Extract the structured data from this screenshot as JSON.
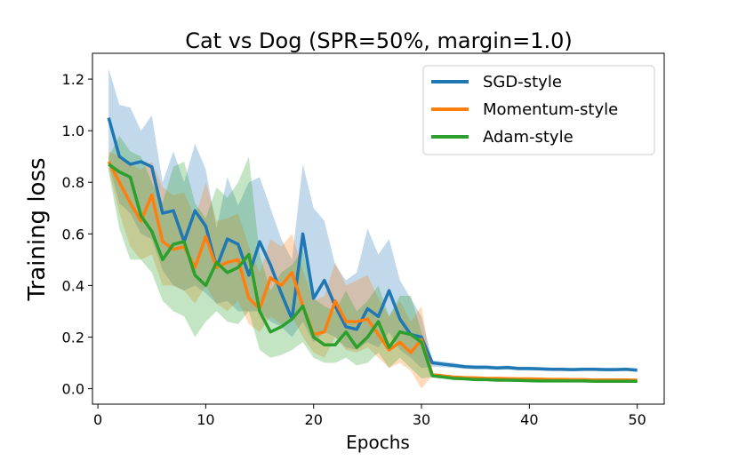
{
  "chart_data": {
    "type": "line",
    "title": "Cat vs Dog (SPR=50%, margin=1.0)",
    "xlabel": "Epochs",
    "ylabel": "Training loss",
    "xlim": [
      -0.5,
      52.5
    ],
    "ylim": [
      -0.06,
      1.3
    ],
    "xticks": [
      0,
      10,
      20,
      30,
      40,
      50
    ],
    "yticks": [
      0.0,
      0.2,
      0.4,
      0.6,
      0.8,
      1.0,
      1.2
    ],
    "xtick_labels": [
      "0",
      "10",
      "20",
      "30",
      "40",
      "50"
    ],
    "ytick_labels": [
      "0.0",
      "0.2",
      "0.4",
      "0.6",
      "0.8",
      "1.0",
      "1.2"
    ],
    "grid": false,
    "legend_position": "top-right",
    "x": [
      1,
      2,
      3,
      4,
      5,
      6,
      7,
      8,
      9,
      10,
      11,
      12,
      13,
      14,
      15,
      16,
      17,
      18,
      19,
      20,
      21,
      22,
      23,
      24,
      25,
      26,
      27,
      28,
      29,
      30,
      31,
      32,
      33,
      34,
      35,
      36,
      37,
      38,
      39,
      40,
      41,
      42,
      43,
      44,
      45,
      46,
      47,
      48,
      49,
      50
    ],
    "series": [
      {
        "name": "SGD-style",
        "color": "#1f77b4",
        "values": [
          1.05,
          0.9,
          0.87,
          0.88,
          0.86,
          0.68,
          0.69,
          0.57,
          0.69,
          0.63,
          0.47,
          0.58,
          0.56,
          0.44,
          0.57,
          0.48,
          0.37,
          0.27,
          0.6,
          0.35,
          0.42,
          0.32,
          0.24,
          0.23,
          0.31,
          0.28,
          0.38,
          0.27,
          0.21,
          0.2,
          0.1,
          0.095,
          0.09,
          0.085,
          0.083,
          0.083,
          0.08,
          0.082,
          0.078,
          0.078,
          0.077,
          0.075,
          0.075,
          0.074,
          0.075,
          0.075,
          0.074,
          0.074,
          0.075,
          0.072
        ],
        "lower": [
          0.87,
          0.72,
          0.68,
          0.6,
          0.58,
          0.46,
          0.4,
          0.38,
          0.4,
          0.37,
          0.33,
          0.34,
          0.3,
          0.3,
          0.3,
          0.26,
          0.24,
          0.2,
          0.26,
          0.18,
          0.22,
          0.2,
          0.16,
          0.15,
          0.18,
          0.16,
          0.22,
          0.15,
          0.12,
          0.08,
          0.085,
          0.083,
          0.08,
          0.077,
          0.075,
          0.075,
          0.073,
          0.074,
          0.071,
          0.071,
          0.07,
          0.068,
          0.068,
          0.067,
          0.068,
          0.068,
          0.067,
          0.067,
          0.068,
          0.065
        ],
        "upper": [
          1.24,
          1.1,
          1.09,
          1.0,
          1.06,
          0.8,
          0.92,
          0.8,
          0.95,
          0.85,
          0.62,
          0.82,
          0.71,
          0.8,
          0.82,
          0.7,
          0.58,
          0.5,
          0.87,
          0.7,
          0.65,
          0.48,
          0.42,
          0.45,
          0.62,
          0.52,
          0.58,
          0.42,
          0.35,
          0.28,
          0.11,
          0.105,
          0.1,
          0.093,
          0.091,
          0.091,
          0.088,
          0.09,
          0.085,
          0.085,
          0.084,
          0.082,
          0.082,
          0.081,
          0.082,
          0.082,
          0.081,
          0.081,
          0.082,
          0.079
        ]
      },
      {
        "name": "Momentum-style",
        "color": "#ff7f0e",
        "values": [
          0.88,
          0.8,
          0.72,
          0.65,
          0.75,
          0.57,
          0.54,
          0.55,
          0.47,
          0.59,
          0.47,
          0.49,
          0.5,
          0.35,
          0.31,
          0.43,
          0.4,
          0.45,
          0.32,
          0.21,
          0.22,
          0.34,
          0.26,
          0.26,
          0.27,
          0.21,
          0.15,
          0.18,
          0.14,
          0.19,
          0.055,
          0.05,
          0.045,
          0.043,
          0.042,
          0.04,
          0.04,
          0.039,
          0.038,
          0.038,
          0.037,
          0.036,
          0.036,
          0.035,
          0.035,
          0.034,
          0.034,
          0.034,
          0.034,
          0.033
        ],
        "lower": [
          0.85,
          0.68,
          0.55,
          0.5,
          0.52,
          0.4,
          0.4,
          0.38,
          0.33,
          0.4,
          0.33,
          0.3,
          0.34,
          0.25,
          0.22,
          0.28,
          0.25,
          0.28,
          0.2,
          0.14,
          0.12,
          0.2,
          0.15,
          0.14,
          0.16,
          0.12,
          0.08,
          0.1,
          0.07,
          0.0,
          0.05,
          0.045,
          0.04,
          0.038,
          0.037,
          0.035,
          0.035,
          0.034,
          0.033,
          0.033,
          0.032,
          0.031,
          0.031,
          0.03,
          0.03,
          0.029,
          0.029,
          0.029,
          0.029,
          0.028
        ],
        "upper": [
          0.92,
          0.9,
          0.87,
          0.85,
          0.88,
          0.78,
          0.75,
          0.76,
          0.66,
          0.8,
          0.65,
          0.66,
          0.68,
          0.55,
          0.45,
          0.58,
          0.55,
          0.6,
          0.46,
          0.34,
          0.36,
          0.49,
          0.4,
          0.42,
          0.44,
          0.35,
          0.28,
          0.34,
          0.26,
          0.32,
          0.06,
          0.055,
          0.05,
          0.048,
          0.047,
          0.045,
          0.045,
          0.044,
          0.043,
          0.043,
          0.042,
          0.041,
          0.041,
          0.04,
          0.04,
          0.039,
          0.039,
          0.039,
          0.039,
          0.038
        ]
      },
      {
        "name": "Adam-style",
        "color": "#2ca02c",
        "values": [
          0.87,
          0.84,
          0.82,
          0.67,
          0.61,
          0.5,
          0.56,
          0.57,
          0.44,
          0.4,
          0.49,
          0.45,
          0.47,
          0.52,
          0.3,
          0.22,
          0.24,
          0.27,
          0.32,
          0.2,
          0.17,
          0.17,
          0.22,
          0.16,
          0.2,
          0.26,
          0.16,
          0.22,
          0.21,
          0.18,
          0.05,
          0.045,
          0.04,
          0.038,
          0.035,
          0.035,
          0.033,
          0.033,
          0.032,
          0.031,
          0.03,
          0.03,
          0.03,
          0.03,
          0.03,
          0.029,
          0.029,
          0.029,
          0.029,
          0.029
        ],
        "lower": [
          0.84,
          0.62,
          0.5,
          0.5,
          0.45,
          0.34,
          0.3,
          0.28,
          0.2,
          0.26,
          0.3,
          0.26,
          0.25,
          0.3,
          0.15,
          0.12,
          0.13,
          0.15,
          0.18,
          0.12,
          0.1,
          0.1,
          0.12,
          0.09,
          0.1,
          0.14,
          0.08,
          0.12,
          0.08,
          0.04,
          0.045,
          0.04,
          0.035,
          0.033,
          0.03,
          0.03,
          0.028,
          0.028,
          0.027,
          0.026,
          0.025,
          0.025,
          0.025,
          0.025,
          0.025,
          0.024,
          0.024,
          0.024,
          0.024,
          0.024
        ],
        "upper": [
          0.9,
          0.98,
          0.92,
          0.9,
          0.8,
          0.72,
          0.86,
          0.88,
          0.72,
          0.66,
          0.78,
          0.74,
          0.8,
          0.9,
          0.52,
          0.38,
          0.45,
          0.48,
          0.54,
          0.35,
          0.32,
          0.3,
          0.38,
          0.3,
          0.34,
          0.4,
          0.28,
          0.36,
          0.36,
          0.22,
          0.055,
          0.05,
          0.045,
          0.043,
          0.04,
          0.04,
          0.038,
          0.038,
          0.037,
          0.036,
          0.035,
          0.035,
          0.035,
          0.035,
          0.035,
          0.034,
          0.034,
          0.034,
          0.034,
          0.034
        ]
      }
    ]
  }
}
